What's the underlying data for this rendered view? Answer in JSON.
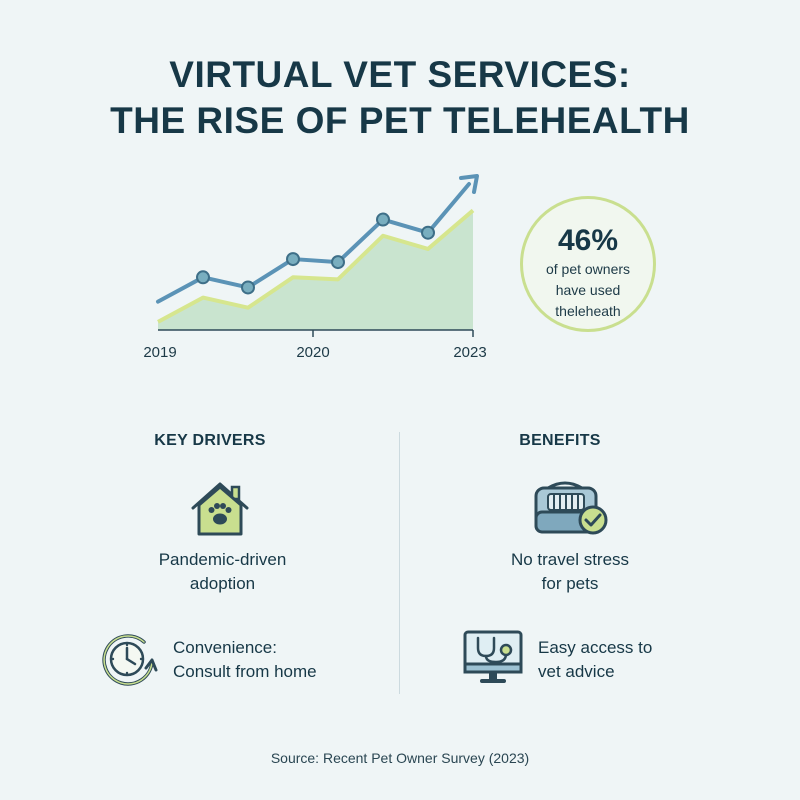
{
  "title": {
    "line1": "VIRTUAL VET SERVICES:",
    "line2": "THE RISE OF PET TELEHEALTH"
  },
  "chart_data": {
    "type": "line",
    "x_tick_labels": [
      "2019",
      "2020",
      "2023"
    ],
    "series": [
      {
        "values": [
          0.28,
          0.52,
          0.42,
          0.7,
          0.67,
          1.09,
          0.96,
          1.5
        ]
      }
    ],
    "area_values": [
      0.08,
      0.32,
      0.22,
      0.52,
      0.5,
      0.93,
      0.8,
      1.18
    ],
    "point_markers": [
      false,
      true,
      true,
      true,
      true,
      true,
      true,
      false
    ],
    "trend_arrow": true,
    "colors": {
      "line": "#5b93b6",
      "area": "#c9e4cf",
      "area_edge": "#d6e68e",
      "marker": "#79aebf"
    },
    "grid": false,
    "legend": "none"
  },
  "stat": {
    "value": "46%",
    "caption_lines": [
      "of pet owners",
      "have used",
      "theleheath"
    ]
  },
  "key_drivers": {
    "heading": "KEY DRIVERS",
    "items": [
      {
        "icon": "house-paw-icon",
        "lines": [
          "Pandemic-driven",
          "adoption"
        ]
      },
      {
        "icon": "clock-cycle-icon",
        "lines": [
          "Convenience:",
          "Consult from home"
        ]
      }
    ]
  },
  "benefits": {
    "heading": "BENEFITS",
    "items": [
      {
        "icon": "pet-carrier-check-icon",
        "lines": [
          "No travel stress",
          "for pets"
        ]
      },
      {
        "icon": "monitor-stethoscope-icon",
        "lines": [
          "Easy access to",
          "vet advice"
        ]
      }
    ]
  },
  "source": "Source: Recent Pet Owner Survey (2023)"
}
